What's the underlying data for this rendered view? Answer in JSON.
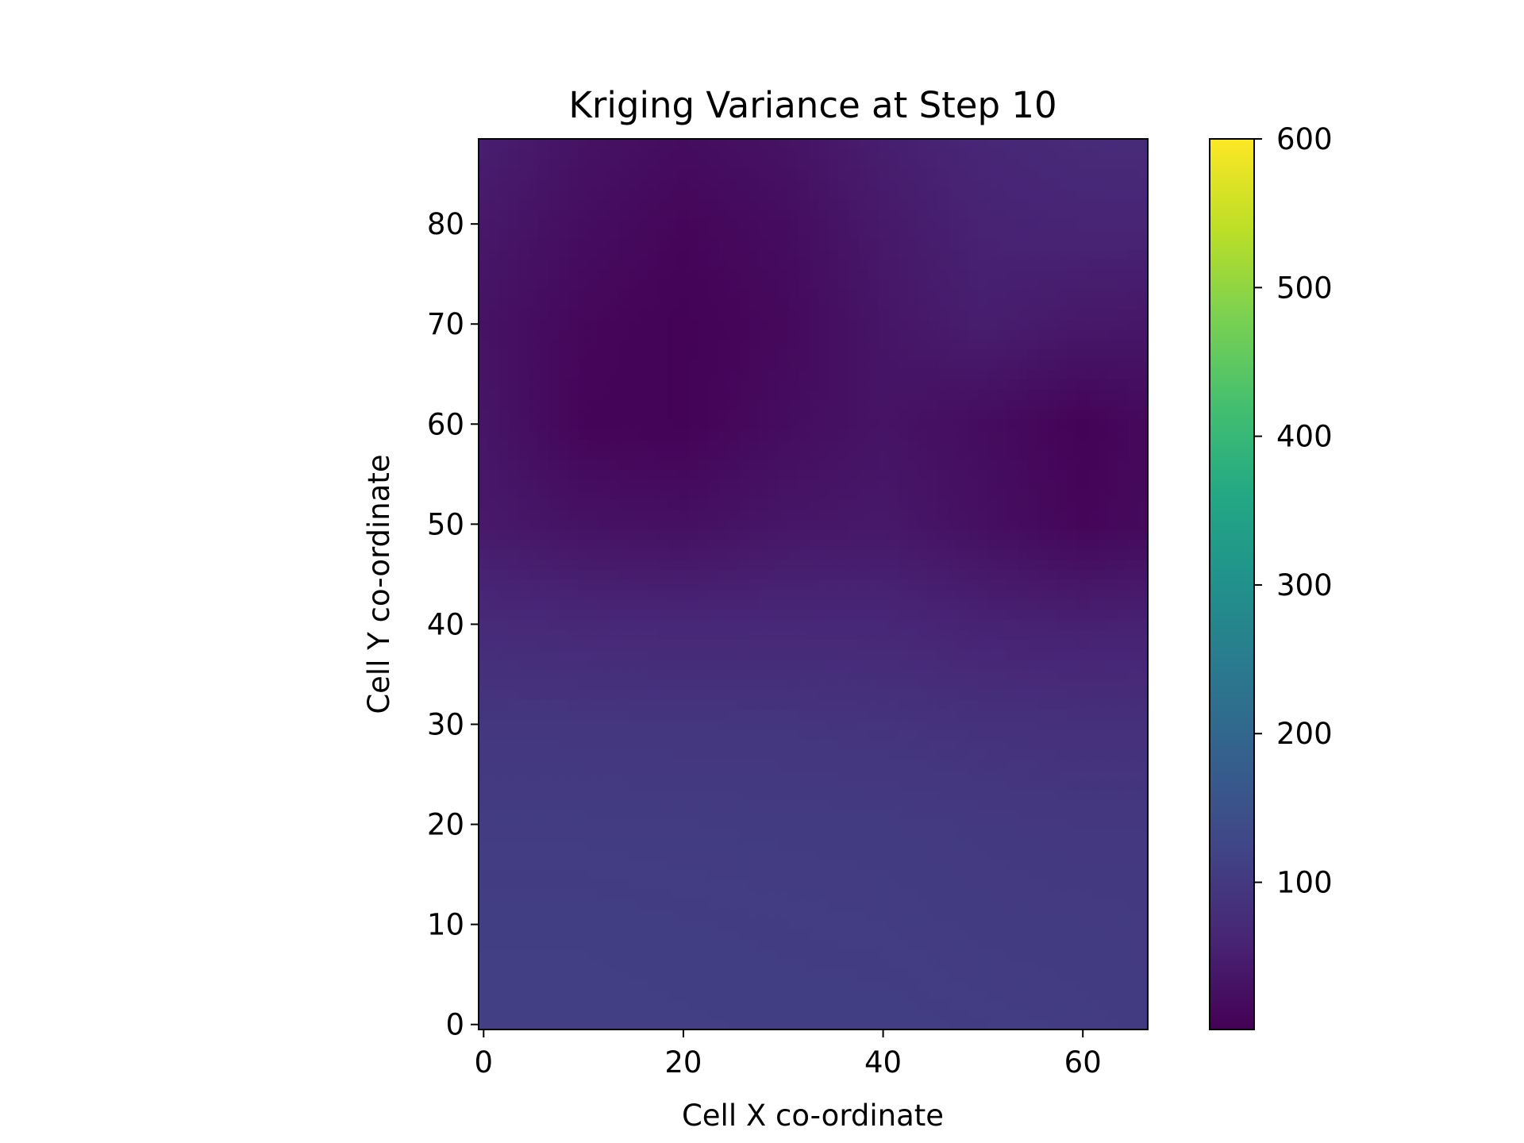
{
  "chart_data": {
    "type": "heatmap",
    "title": "Kriging Variance at Step 10",
    "xlabel": "Cell X co-ordinate",
    "ylabel": "Cell Y co-ordinate",
    "xlim": [
      -0.5,
      66.5
    ],
    "ylim": [
      -0.5,
      88.5
    ],
    "x_ticks": [
      0,
      20,
      40,
      60
    ],
    "y_ticks": [
      0,
      10,
      20,
      30,
      40,
      50,
      60,
      70,
      80
    ],
    "colormap": "viridis",
    "colorbar": {
      "vmin": 1,
      "vmax": 600,
      "ticks": [
        100,
        200,
        300,
        400,
        500,
        600
      ]
    },
    "grid": false,
    "variance_samples": {
      "x": [
        0,
        10,
        20,
        30,
        40,
        50,
        60,
        66
      ],
      "y": [
        0,
        10,
        20,
        30,
        40,
        50,
        60,
        70,
        80,
        88
      ],
      "values": [
        [
          112,
          112,
          111,
          110,
          110,
          108,
          106,
          104
        ],
        [
          110,
          110,
          109,
          108,
          107,
          104,
          103,
          102
        ],
        [
          106,
          106,
          105,
          104,
          103,
          100,
          97,
          97
        ],
        [
          96,
          95,
          94,
          93,
          90,
          86,
          83,
          83
        ],
        [
          72,
          68,
          66,
          67,
          66,
          58,
          54,
          56
        ],
        [
          42,
          30,
          26,
          36,
          40,
          25,
          10,
          16
        ],
        [
          35,
          8,
          5,
          20,
          32,
          20,
          5,
          14
        ],
        [
          30,
          12,
          4,
          14,
          35,
          50,
          40,
          38
        ],
        [
          40,
          22,
          10,
          20,
          42,
          58,
          62,
          62
        ],
        [
          50,
          30,
          20,
          30,
          50,
          65,
          72,
          74
        ]
      ]
    }
  }
}
